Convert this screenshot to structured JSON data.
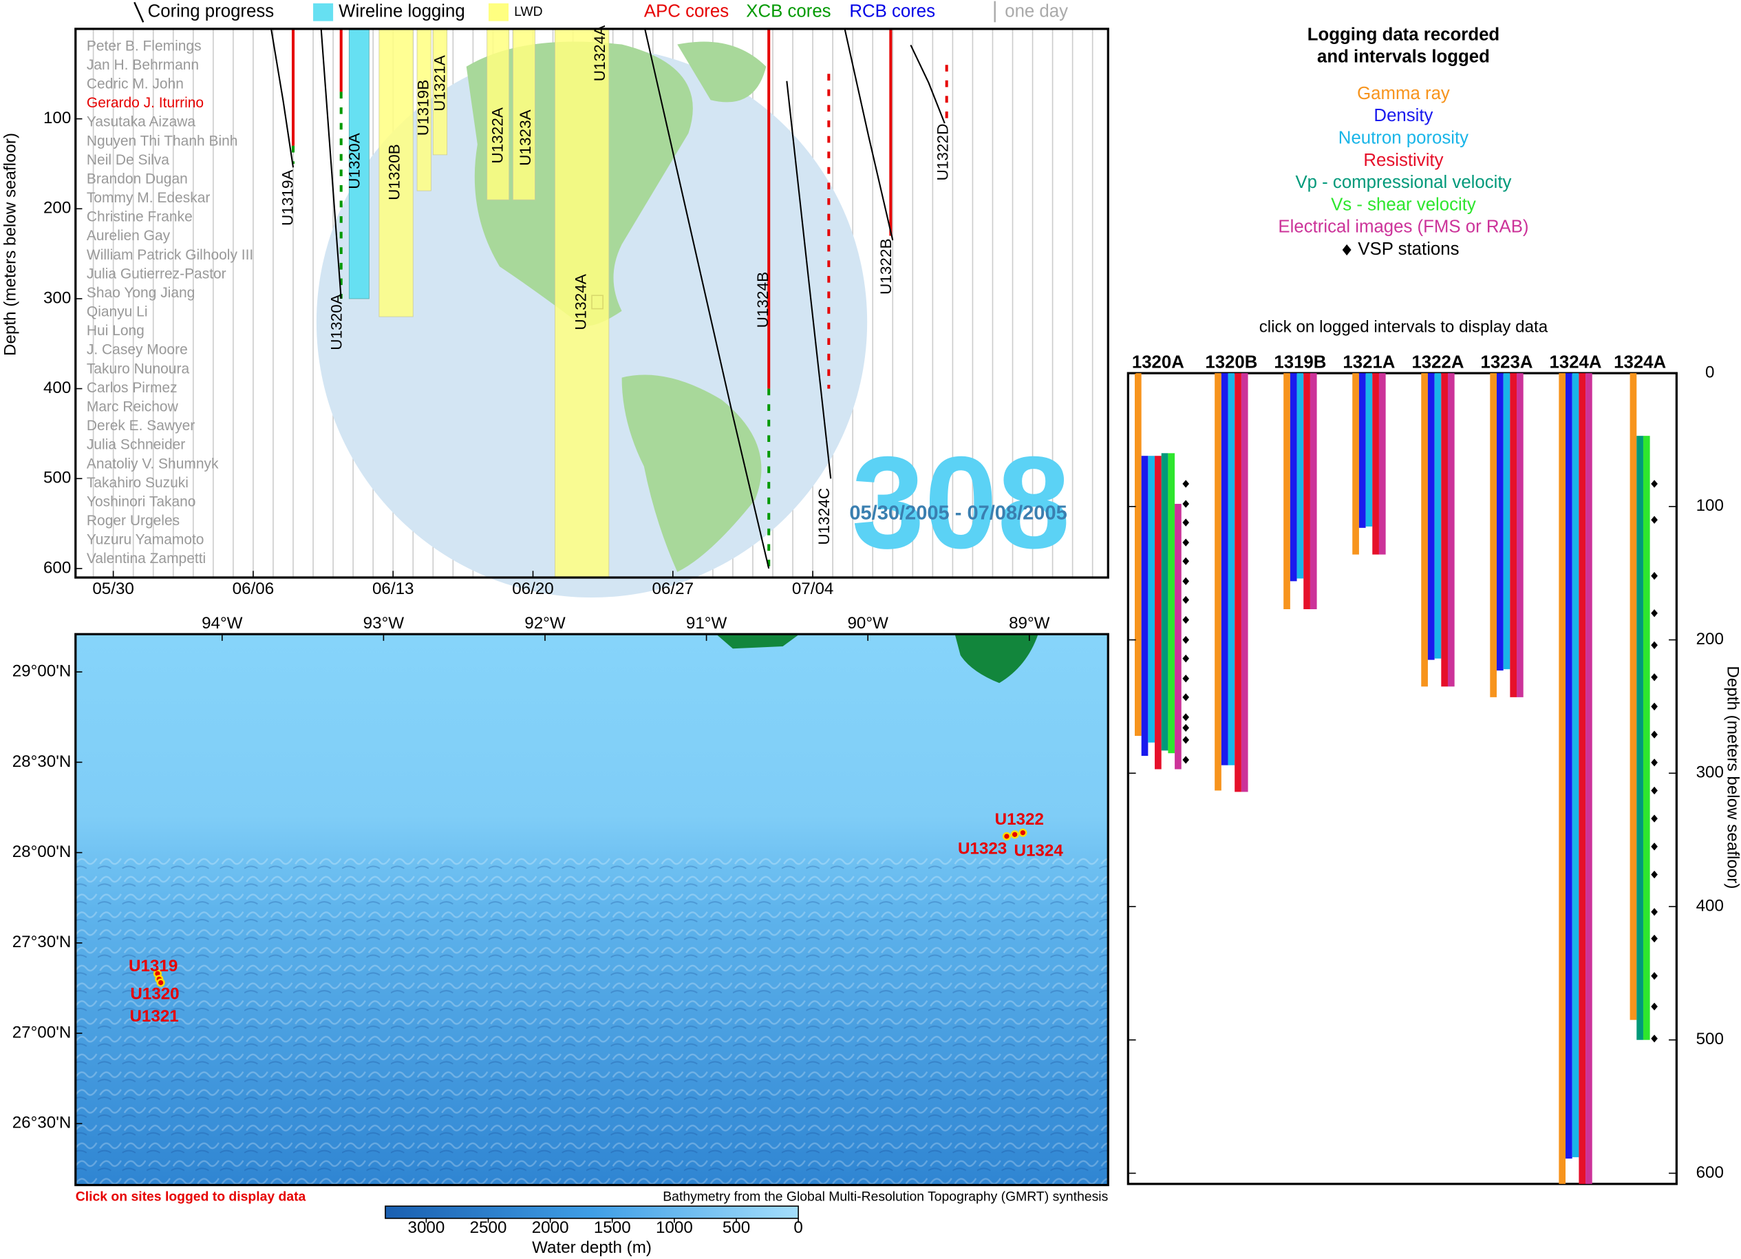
{
  "top_panel": {
    "legend": [
      {
        "label": "Coring progress",
        "color": "#000000"
      },
      {
        "label": "Wireline logging",
        "color": "#66e0f2"
      },
      {
        "label": "LWD",
        "color": "#ffff80"
      },
      {
        "label": "APC cores",
        "color": "#e60000"
      },
      {
        "label": "XCB cores",
        "color": "#009900"
      },
      {
        "label": "RCB cores",
        "color": "#0000e6"
      },
      {
        "label": "one day",
        "color": "#aaaaaa"
      }
    ],
    "y_label": "Depth (meters below seafloor)",
    "ylim": [
      0,
      610
    ],
    "yticks": [
      100,
      200,
      300,
      400,
      500,
      600
    ],
    "xlim": [
      -1.889,
      49.778
    ],
    "xticks": [
      {
        "value": 0,
        "label": "05/30"
      },
      {
        "value": 7,
        "label": "06/06"
      },
      {
        "value": 14,
        "label": "06/13"
      },
      {
        "value": 21,
        "label": "06/20"
      },
      {
        "value": 28,
        "label": "06/27"
      },
      {
        "value": 35,
        "label": "07/04"
      }
    ],
    "scientists": [
      "Peter B. Flemings",
      "Jan H. Behrmann",
      "Cedric M. John",
      "Gerardo J. Iturrino",
      "Yasutaka Aizawa",
      "Nguyen Thi Thanh Binh",
      "Neil De Silva",
      "Brandon Dugan",
      "Tommy M. Edeskar",
      "Christine Franke",
      "Aurelien Gay",
      "William Patrick Gilhooly III",
      "Julia Gutierrez-Pastor",
      "Shao Yong Jiang",
      "Qianyu Li",
      "Hui Long",
      "J. Casey Moore",
      "Takuro Nunoura",
      "Carlos Pirmez",
      "Marc Reichow",
      "Derek E. Sawyer",
      "Julia Schneider",
      "Anatoliy V. Shumnyk",
      "Takahiro Suzuki",
      "Yoshinori Takano",
      "Roger Urgeles",
      "Yuzuru Yamamoto",
      "Valentina Zampetti"
    ],
    "highlighted": 3,
    "highlight_color": "#e60000",
    "expedition": "308",
    "dates": "05/30/2005 - 07/08/2005",
    "wireline": [
      {
        "hole": "U1320A",
        "start": 11.8,
        "end": 12.8,
        "top": 0,
        "bottom": 300
      }
    ],
    "lwd": [
      {
        "hole": "U1320B",
        "start": 13.3,
        "end": 15.0,
        "top": 0,
        "bottom": 320
      },
      {
        "hole": "U1319B",
        "start": 15.2,
        "end": 15.9,
        "top": 0,
        "bottom": 180
      },
      {
        "hole": "U1321A",
        "start": 16.0,
        "end": 16.7,
        "top": 0,
        "bottom": 140
      },
      {
        "hole": "U1322A",
        "start": 18.7,
        "end": 19.8,
        "top": 0,
        "bottom": 190
      },
      {
        "hole": "U1323A",
        "start": 20.0,
        "end": 21.1,
        "top": 0,
        "bottom": 190
      },
      {
        "hole": "U1324A",
        "start": 22.1,
        "end": 24.8,
        "top": 0,
        "bottom": 610
      }
    ],
    "cores": [
      {
        "day": 9.0,
        "top": 0,
        "bottom": 130,
        "color": "#e60000",
        "dashed": false
      },
      {
        "day": 9.0,
        "top": 130,
        "bottom": 150,
        "color": "#009900",
        "dashed": true
      },
      {
        "day": 11.4,
        "top": 0,
        "bottom": 70,
        "color": "#e60000",
        "dashed": false
      },
      {
        "day": 11.4,
        "top": 70,
        "bottom": 300,
        "color": "#009900",
        "dashed": true
      },
      {
        "day": 32.8,
        "top": 0,
        "bottom": 400,
        "color": "#e60000",
        "dashed": false
      },
      {
        "day": 32.8,
        "top": 400,
        "bottom": 600,
        "color": "#009900",
        "dashed": true
      },
      {
        "day": 35.8,
        "top": 50,
        "bottom": 400,
        "color": "#e60000",
        "dashed": true
      },
      {
        "day": 38.9,
        "top": 0,
        "bottom": 230,
        "color": "#e60000",
        "dashed": false
      },
      {
        "day": 41.7,
        "top": 40,
        "bottom": 105,
        "color": "#e60000",
        "dashed": true
      }
    ],
    "progress": [
      {
        "hole": "U1319A",
        "days": [
          7.9,
          8.5,
          9.0
        ],
        "depths": [
          0,
          80,
          154
        ]
      },
      {
        "hole": "U1320A",
        "days": [
          10.4,
          10.9,
          11.4
        ],
        "depths": [
          0,
          150,
          300
        ]
      },
      {
        "hole": "U1324B",
        "days": [
          26.6,
          28.8,
          31.0,
          32.8
        ],
        "depths": [
          0,
          215,
          430,
          600
        ]
      },
      {
        "hole": "U1324C",
        "days": [
          33.7,
          34.8,
          35.9
        ],
        "depths": [
          58,
          280,
          500
        ]
      },
      {
        "hole": "U1322B",
        "days": [
          36.6,
          37.8,
          39.0
        ],
        "depths": [
          0,
          120,
          235
        ]
      },
      {
        "hole": "U1322D",
        "days": [
          39.9,
          40.8,
          41.6
        ],
        "depths": [
          18,
          60,
          105
        ]
      }
    ],
    "globe_label": "U1324A"
  },
  "map": {
    "xlim": [
      -94.908,
      -88.512
    ],
    "ylim": [
      26.16,
      29.209
    ],
    "lon_ticks": [
      {
        "value": -94,
        "label": "94°W"
      },
      {
        "value": -93,
        "label": "93°W"
      },
      {
        "value": -92,
        "label": "92°W"
      },
      {
        "value": -91,
        "label": "91°W"
      },
      {
        "value": -90,
        "label": "90°W"
      },
      {
        "value": -89,
        "label": "89°W"
      }
    ],
    "lat_ticks": [
      {
        "value": 29,
        "label": "29°00'N"
      },
      {
        "value": 28.5,
        "label": "28°30'N"
      },
      {
        "value": 28,
        "label": "28°00'N"
      },
      {
        "value": 27.5,
        "label": "27°30'N"
      },
      {
        "value": 27,
        "label": "27°00'N"
      },
      {
        "value": 26.5,
        "label": "26°30'N"
      }
    ],
    "sites": [
      {
        "label": "U1319",
        "lon": -94.4,
        "lat": 27.33
      },
      {
        "label": "U1320",
        "lon": -94.39,
        "lat": 27.3
      },
      {
        "label": "U1321",
        "lon": -94.38,
        "lat": 27.28
      },
      {
        "label": "U1322",
        "lon": -89.09,
        "lat": 28.1
      },
      {
        "label": "U1323",
        "lon": -89.14,
        "lat": 28.09
      },
      {
        "label": "U1324",
        "lon": -89.04,
        "lat": 28.11
      }
    ],
    "footer": "Click on sites logged to display data",
    "credit": "Bathymetry from the Global Multi-Resolution Topography (GMRT) synthesis",
    "colorbar": {
      "label": "Water depth (m)",
      "lim": [
        3330,
        0
      ],
      "ticks": [
        3000,
        2500,
        2000,
        1500,
        1000,
        500,
        0
      ]
    }
  },
  "logs": {
    "title": [
      "Logging data recorded",
      "and intervals logged"
    ],
    "tools": [
      {
        "name": "Gamma ray",
        "color": "#f7941d"
      },
      {
        "name": "Density",
        "color": "#1a1aee"
      },
      {
        "name": "Neutron porosity",
        "color": "#19b5e8"
      },
      {
        "name": "Resistivity",
        "color": "#e6102a"
      },
      {
        "name": "Vp - compressional velocity",
        "color": "#00997a"
      },
      {
        "name": "Vs - shear velocity",
        "color": "#2ee62e"
      },
      {
        "name": "Electrical images (FMS or RAB)",
        "color": "#cc3399"
      }
    ],
    "vsp_label": "VSP stations",
    "instruction": "click on logged intervals to display data",
    "y_label": "Depth (meters below seafloor)",
    "ylim": [
      0,
      608
    ],
    "yticks": [
      0,
      100,
      200,
      300,
      400,
      500,
      600
    ],
    "holes": [
      {
        "name": "1320A",
        "logs": [
          {
            "color": "#f7941d",
            "top": 0,
            "bottom": 272
          },
          {
            "color": "#1a1aee",
            "top": 62,
            "bottom": 287
          },
          {
            "color": "#19b5e8",
            "top": 62,
            "bottom": 277
          },
          {
            "color": "#e6102a",
            "top": 62,
            "bottom": 297
          },
          {
            "color": "#00997a",
            "top": 60,
            "bottom": 283
          },
          {
            "color": "#2ee62e",
            "top": 60,
            "bottom": 285
          },
          {
            "color": "#cc3399",
            "top": 98,
            "bottom": 297
          }
        ],
        "vsp": [
          83,
          98,
          112,
          127,
          141,
          156,
          170,
          185,
          200,
          214,
          229,
          243,
          258,
          266,
          275,
          290
        ]
      },
      {
        "name": "1320B",
        "logs": [
          {
            "color": "#f7941d",
            "top": 0,
            "bottom": 313
          },
          {
            "color": "#1a1aee",
            "top": 0,
            "bottom": 294
          },
          {
            "color": "#19b5e8",
            "top": 0,
            "bottom": 294
          },
          {
            "color": "#e6102a",
            "top": 0,
            "bottom": 314
          },
          {
            "color": "#cc3399",
            "top": 0,
            "bottom": 314
          }
        ],
        "vsp": []
      },
      {
        "name": "1319B",
        "logs": [
          {
            "color": "#f7941d",
            "top": 0,
            "bottom": 177
          },
          {
            "color": "#1a1aee",
            "top": 0,
            "bottom": 156
          },
          {
            "color": "#19b5e8",
            "top": 0,
            "bottom": 154
          },
          {
            "color": "#e6102a",
            "top": 0,
            "bottom": 177
          },
          {
            "color": "#cc3399",
            "top": 0,
            "bottom": 177
          }
        ],
        "vsp": []
      },
      {
        "name": "1321A",
        "logs": [
          {
            "color": "#f7941d",
            "top": 0,
            "bottom": 136
          },
          {
            "color": "#1a1aee",
            "top": 0,
            "bottom": 116
          },
          {
            "color": "#19b5e8",
            "top": 0,
            "bottom": 115
          },
          {
            "color": "#e6102a",
            "top": 0,
            "bottom": 136
          },
          {
            "color": "#cc3399",
            "top": 0,
            "bottom": 136
          }
        ],
        "vsp": []
      },
      {
        "name": "1322A",
        "logs": [
          {
            "color": "#f7941d",
            "top": 0,
            "bottom": 235
          },
          {
            "color": "#1a1aee",
            "top": 0,
            "bottom": 215
          },
          {
            "color": "#19b5e8",
            "top": 0,
            "bottom": 214
          },
          {
            "color": "#e6102a",
            "top": 0,
            "bottom": 235
          },
          {
            "color": "#cc3399",
            "top": 0,
            "bottom": 235
          }
        ],
        "vsp": []
      },
      {
        "name": "1323A",
        "logs": [
          {
            "color": "#f7941d",
            "top": 0,
            "bottom": 243
          },
          {
            "color": "#1a1aee",
            "top": 0,
            "bottom": 223
          },
          {
            "color": "#19b5e8",
            "top": 0,
            "bottom": 222
          },
          {
            "color": "#e6102a",
            "top": 0,
            "bottom": 243
          },
          {
            "color": "#cc3399",
            "top": 0,
            "bottom": 243
          }
        ],
        "vsp": []
      },
      {
        "name": "1324A",
        "logs": [
          {
            "color": "#f7941d",
            "top": 0,
            "bottom": 608
          },
          {
            "color": "#1a1aee",
            "top": 0,
            "bottom": 589
          },
          {
            "color": "#19b5e8",
            "top": 0,
            "bottom": 588
          },
          {
            "color": "#e6102a",
            "top": 0,
            "bottom": 608
          },
          {
            "color": "#cc3399",
            "top": 0,
            "bottom": 608
          }
        ],
        "vsp": []
      },
      {
        "name": "1324A",
        "logs": [
          {
            "color": "#f7941d",
            "top": 0,
            "bottom": 485
          },
          {
            "color": "#00997a",
            "top": 47,
            "bottom": 500
          },
          {
            "color": "#2ee62e",
            "top": 47,
            "bottom": 500
          }
        ],
        "vsp": [
          83,
          110,
          152,
          180,
          204,
          228,
          250,
          271,
          292,
          313,
          334,
          355,
          376,
          404,
          424,
          452,
          475,
          499
        ]
      }
    ]
  }
}
